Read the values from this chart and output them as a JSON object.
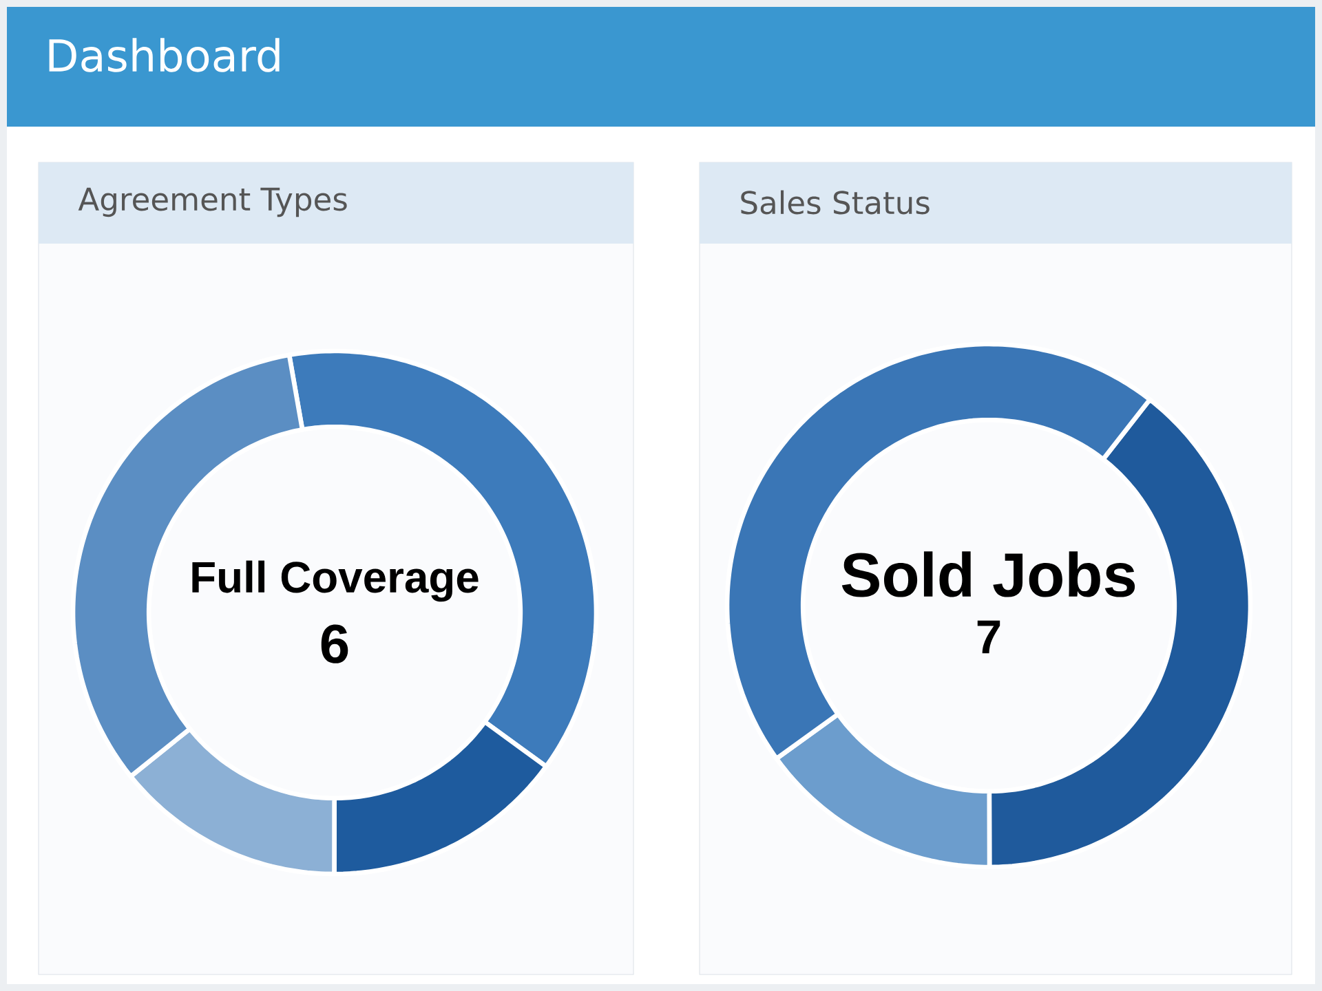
{
  "chart_data": [
    {
      "type": "other",
      "title": "Dashboard"
    },
    {
      "type": "donut",
      "title": "Agreement Types",
      "categories": [
        null,
        null,
        null,
        null
      ],
      "values": [
        37.8,
        15,
        14.2,
        33
      ],
      "colors": [
        "#3d7bbb",
        "#1e5b9e",
        "#8cb0d5",
        "#5b8ec3"
      ],
      "annotations": [
        "Full Coverage",
        "6"
      ]
    },
    {
      "type": "donut",
      "title": "Sales Status",
      "categories": [
        null,
        null,
        null
      ],
      "values": [
        39.4,
        15.1,
        45.5
      ],
      "colors": [
        "#1f5a9c",
        "#6c9dcd",
        "#3a76b6"
      ],
      "annotations": [
        "Sold Jobs",
        "7"
      ]
    }
  ]
}
